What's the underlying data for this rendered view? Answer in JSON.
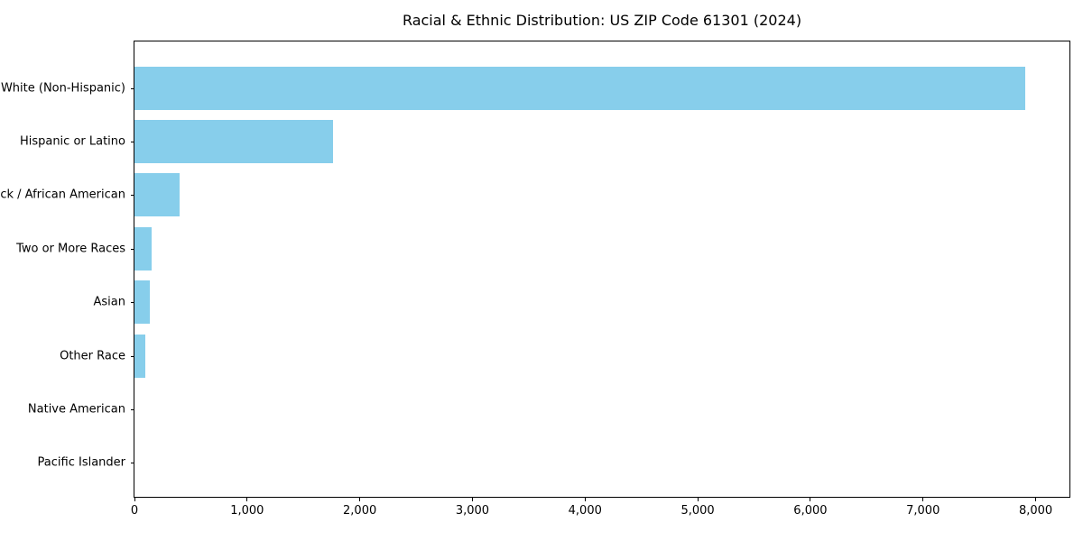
{
  "figure": {
    "title": "Racial & Ethnic Distribution: US ZIP Code 61301 (2024)"
  },
  "chart_data": {
    "type": "bar",
    "orientation": "horizontal",
    "title": "Racial & Ethnic Distribution: US ZIP Code 61301 (2024)",
    "categories": [
      "White (Non-Hispanic)",
      "Hispanic or Latino",
      "Black / African American",
      "Two or More Races",
      "Asian",
      "Other Race",
      "Native American",
      "Pacific Islander"
    ],
    "values": [
      7910,
      1760,
      400,
      150,
      135,
      100,
      0,
      0
    ],
    "xlim": [
      0,
      8300
    ],
    "xticks": [
      0,
      1000,
      2000,
      3000,
      4000,
      5000,
      6000,
      7000,
      8000
    ],
    "xtick_labels": [
      "0",
      "1,000",
      "2,000",
      "3,000",
      "4,000",
      "5,000",
      "6,000",
      "7,000",
      "8,000"
    ],
    "bar_color": "#87CEEB",
    "axis_color": "#000000",
    "text_color": "#000000",
    "background": "#FFFFFF",
    "grid": false,
    "legend": null,
    "xlabel": "",
    "ylabel": ""
  }
}
